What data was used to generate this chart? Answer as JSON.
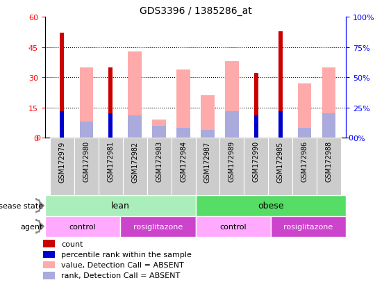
{
  "title": "GDS3396 / 1385286_at",
  "samples": [
    "GSM172979",
    "GSM172980",
    "GSM172981",
    "GSM172982",
    "GSM172983",
    "GSM172984",
    "GSM172987",
    "GSM172989",
    "GSM172990",
    "GSM172985",
    "GSM172986",
    "GSM172988"
  ],
  "count": [
    52,
    0,
    35,
    0,
    0,
    0,
    0,
    0,
    32,
    53,
    0,
    0
  ],
  "percentile_rank": [
    13,
    0,
    12,
    0,
    0,
    0,
    0,
    0,
    11,
    13,
    0,
    0
  ],
  "value_absent": [
    0,
    35,
    0,
    43,
    9,
    34,
    21,
    38,
    0,
    0,
    27,
    35
  ],
  "rank_absent": [
    0,
    8,
    0,
    11,
    6,
    5,
    4,
    13,
    0,
    0,
    5,
    12
  ],
  "yticks_left": [
    0,
    15,
    30,
    45,
    60
  ],
  "yticks_right": [
    0,
    25,
    50,
    75,
    100
  ],
  "color_count": "#cc0000",
  "color_percentile": "#0000cc",
  "color_value_absent": "#ffaaaa",
  "color_rank_absent": "#aaaadd",
  "color_lean": "#aaeebb",
  "color_obese": "#55dd66",
  "color_control": "#ffaaff",
  "color_rosiglitazone": "#cc44cc",
  "color_xtick_bg": "#cccccc",
  "background_color": "#ffffff",
  "legend_items": [
    "count",
    "percentile rank within the sample",
    "value, Detection Call = ABSENT",
    "rank, Detection Call = ABSENT"
  ],
  "legend_colors": [
    "#cc0000",
    "#0000cc",
    "#ffaaaa",
    "#aaaadd"
  ]
}
